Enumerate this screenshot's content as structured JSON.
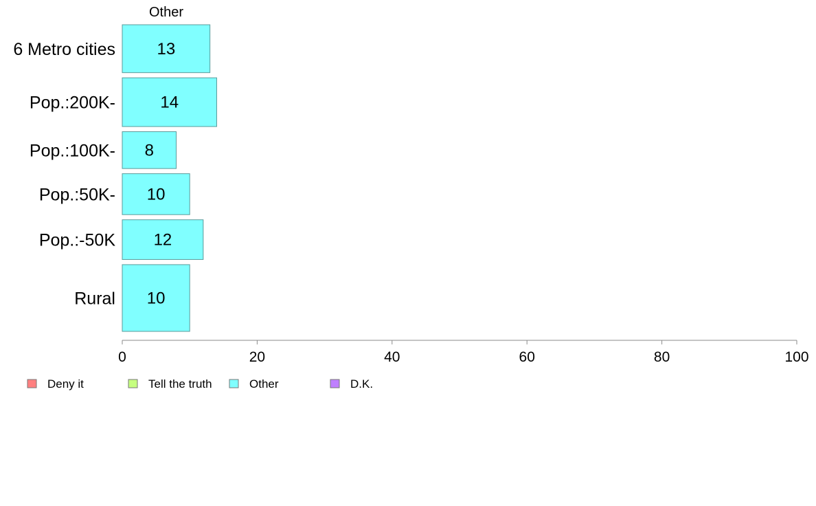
{
  "chart_data": {
    "type": "bar",
    "orientation": "horizontal",
    "panel_label": "Other",
    "categories": [
      "6 Metro cities",
      "Pop.:200K-",
      "Pop.:100K-",
      "Pop.:50K-",
      "Pop.:-50K",
      "Rural"
    ],
    "series": [
      {
        "name": "Other",
        "values": [
          13,
          14,
          8,
          10,
          12,
          10
        ],
        "color": "#80FFFF"
      }
    ],
    "bar_labels": [
      "13",
      "14",
      "8",
      "10",
      "12",
      "10"
    ],
    "category_weights": [
      1.17,
      1.19,
      0.9,
      1.0,
      0.97,
      1.63
    ],
    "xlim": [
      0,
      100
    ],
    "xticks": [
      0,
      20,
      40,
      60,
      80,
      100
    ],
    "xtick_labels": [
      "0",
      "20",
      "40",
      "60",
      "80",
      "100"
    ],
    "grid": false,
    "legend_position": "bottom-left",
    "legend": [
      {
        "label": "Deny it",
        "color": "#FF8080"
      },
      {
        "label": "Tell the truth",
        "color": "#C6FF80"
      },
      {
        "label": "Other",
        "color": "#80FFFF"
      },
      {
        "label": "D.K.",
        "color": "#BF80FF"
      }
    ]
  }
}
